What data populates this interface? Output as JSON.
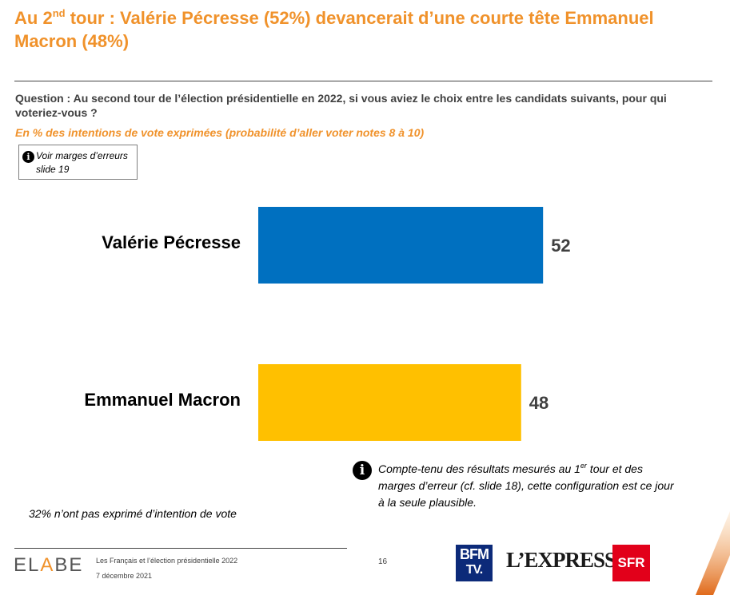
{
  "slide": {
    "title_part1": "Au 2",
    "title_sup": "nd",
    "title_part2": " tour : Valérie Pécresse (52%) devancerait d’une courte tête Emmanuel Macron (48%)",
    "question": "Question : Au second tour de l’élection présidentielle en 2022, si vous aviez le choix entre les candidats suivants, pour qui voteriez-vous ?",
    "subtitle": "En % des intentions de vote exprimées (probabilité d’aller voter notes 8 à 10)",
    "note_box": "Voir marges d’erreurs slide 19",
    "bottom_note": "32% n’ont pas exprimé d’intention de vote",
    "info_text_1": "Compte-tenu des résultats mesurés au 1",
    "info_text_sup": "er",
    "info_text_2": " tour et des marges d’erreur (cf. slide 18), cette configuration est ce jour à la seule plausible.",
    "info_icon": "info-icon"
  },
  "chart_data": {
    "type": "bar",
    "orientation": "horizontal",
    "categories": [
      "Valérie Pécresse",
      "Emmanuel Macron"
    ],
    "values": [
      52,
      48
    ],
    "colors": [
      "#0070c0",
      "#ffc000"
    ],
    "xlim": [
      0,
      100
    ],
    "unit": "%",
    "title": "",
    "xlabel": "",
    "ylabel": ""
  },
  "footer": {
    "logo_text_1": "EL",
    "logo_text_a": "A",
    "logo_text_2": "BE",
    "study": "Les Français et l’élection présidentielle 2022",
    "date": "7 décembre 2021",
    "page": "16",
    "bfm_line1": "BFM",
    "bfm_line2": "TV.",
    "express": "L’EXPRESS",
    "sfr": "SFR",
    "accent_color": "#f0922b"
  }
}
